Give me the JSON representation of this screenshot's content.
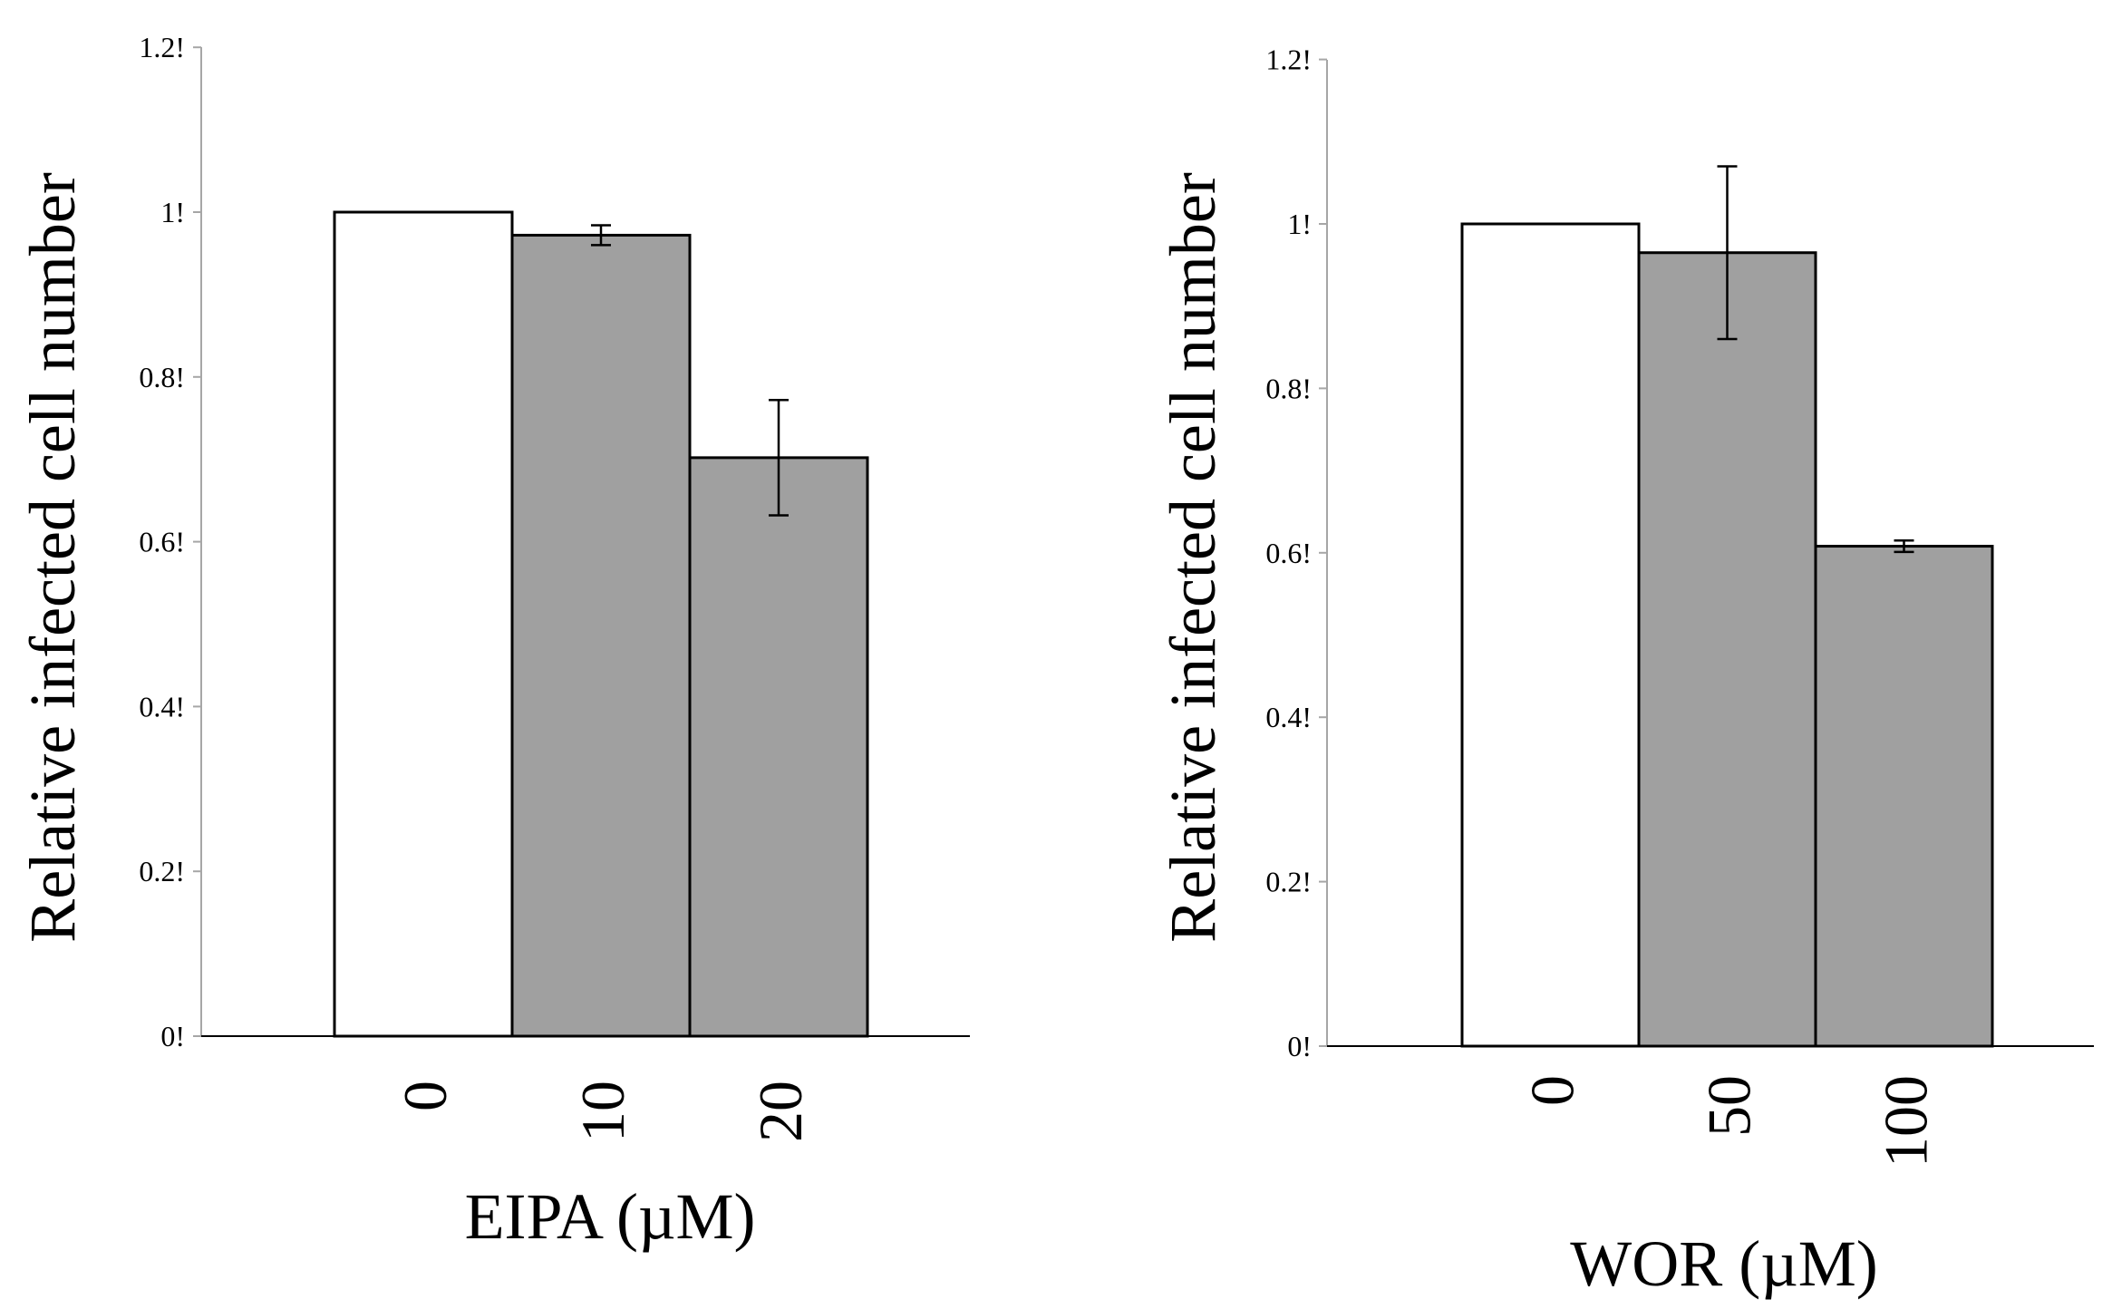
{
  "chart_data": [
    {
      "type": "bar",
      "categories": [
        "0",
        "10",
        "20"
      ],
      "values": [
        1.0,
        0.972,
        0.702
      ],
      "errors": [
        0,
        0.012,
        0.07
      ],
      "bar_colors": [
        "#ffffff",
        "#a0a0a0",
        "#a0a0a0"
      ],
      "xlabel": "EIPA (µM)",
      "ylabel": "Relative infected cell number",
      "ylim": [
        0,
        1.2
      ],
      "yticks": [
        0,
        0.2,
        0.4,
        0.6,
        0.8,
        1,
        1.2
      ],
      "ytick_labels": [
        "0!",
        "0.2!",
        "0.4!",
        "0.6!",
        "0.8!",
        "1!",
        "1.2!"
      ],
      "grid": false,
      "legend": "none"
    },
    {
      "type": "bar",
      "categories": [
        "0",
        "50",
        "100"
      ],
      "values": [
        1.0,
        0.965,
        0.608
      ],
      "errors": [
        0,
        0.105,
        0.007
      ],
      "bar_colors": [
        "#ffffff",
        "#a0a0a0",
        "#a0a0a0"
      ],
      "xlabel": "WOR (µM)",
      "ylabel": "Relative infected cell number",
      "ylim": [
        0,
        1.2
      ],
      "yticks": [
        0,
        0.2,
        0.4,
        0.6,
        0.8,
        1,
        1.2
      ],
      "ytick_labels": [
        "0!",
        "0.2!",
        "0.4!",
        "0.6!",
        "0.8!",
        "1!",
        "1.2!"
      ],
      "grid": false,
      "legend": "none"
    }
  ],
  "colors": {
    "axis": "#a6a6a6",
    "bar_outline": "#000000",
    "error_bar": "#000000"
  }
}
